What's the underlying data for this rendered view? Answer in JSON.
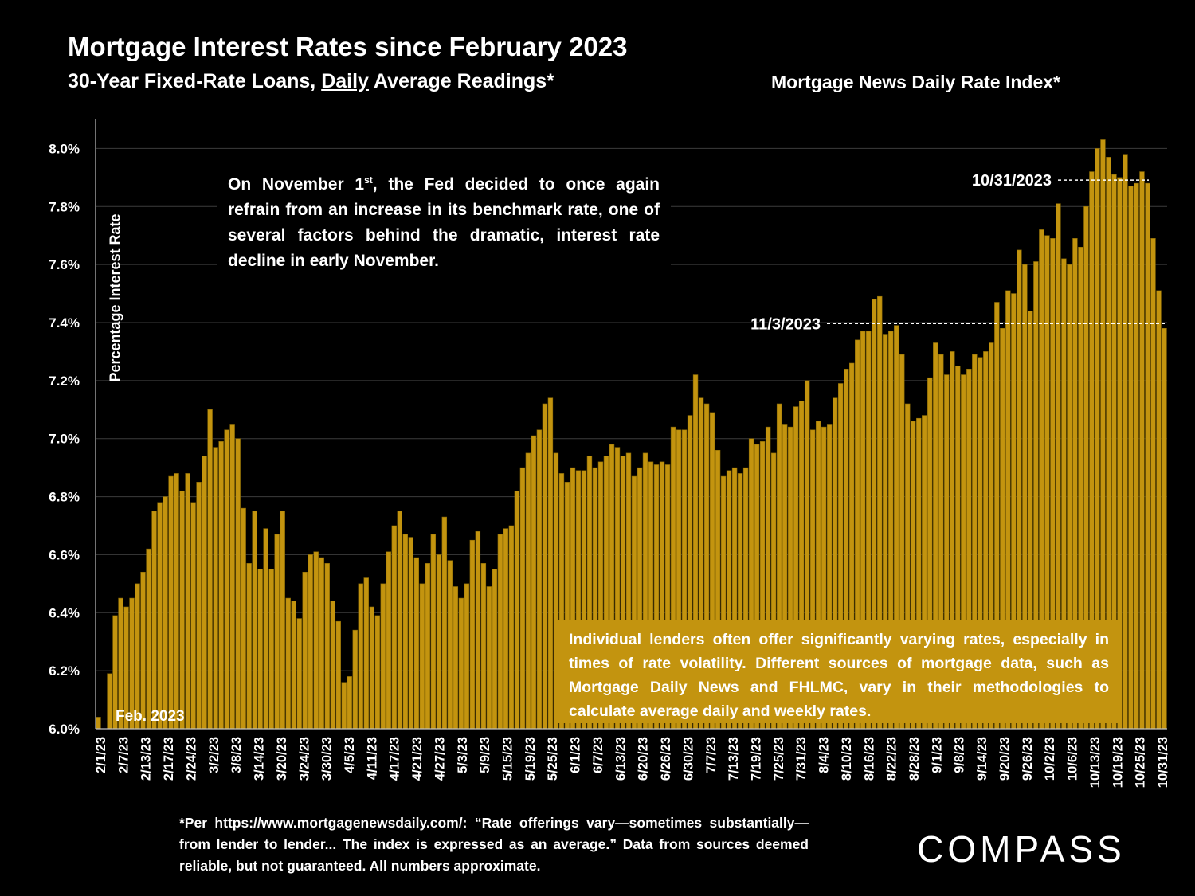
{
  "title": "Mortgage Interest Rates since February 2023",
  "subtitle_prefix": "30-Year Fixed-Rate Loans, ",
  "subtitle_emphasis": "Daily",
  "subtitle_suffix": " Average Readings*",
  "index_label": "Mortgage News Daily Rate Index*",
  "fed_note": {
    "part1": "On November 1",
    "sup": "st",
    "part2": ", the Fed decided to once again refrain from an increase in its benchmark rate, one of several factors behind the dramatic, interest rate decline in early November."
  },
  "lender_note": "Individual lenders often offer significantly varying rates, especially in times of rate volatility. Different sources of mortgage data, such as Mortgage Daily News and FHLMC, vary in their methodologies to calculate average daily and weekly rates.",
  "footnote": "*Per https://www.mortgagenewsdaily.com/: “Rate offerings vary—sometimes substantially—from lender to lender... The index is expressed as an average.” Data from sources deemed reliable, but not guaranteed. All numbers approximate.",
  "logo_text": "COMPASS",
  "colors": {
    "bar": "#c3940f",
    "bar_edge": "#8a6a05",
    "background": "#000000",
    "text": "#ffffff"
  },
  "chart_data": {
    "type": "bar",
    "ylabel": "Percentage Interest  Rate",
    "ylim": [
      6.0,
      8.1
    ],
    "yticks": [
      6.0,
      6.2,
      6.4,
      6.6,
      6.8,
      7.0,
      7.2,
      7.4,
      7.6,
      7.8,
      8.0
    ],
    "ytick_labels": [
      "6.0%",
      "6.2%",
      "6.4%",
      "6.6%",
      "6.8%",
      "7.0%",
      "7.2%",
      "7.4%",
      "7.6%",
      "7.8%",
      "8.0%"
    ],
    "grid": true,
    "values": [
      6.04,
      6.0,
      6.19,
      6.39,
      6.45,
      6.42,
      6.45,
      6.5,
      6.54,
      6.62,
      6.75,
      6.78,
      6.8,
      6.87,
      6.88,
      6.82,
      6.88,
      6.78,
      6.85,
      6.94,
      7.1,
      6.97,
      6.99,
      7.03,
      7.05,
      7.0,
      6.76,
      6.57,
      6.75,
      6.55,
      6.69,
      6.55,
      6.67,
      6.75,
      6.45,
      6.44,
      6.38,
      6.54,
      6.6,
      6.61,
      6.59,
      6.57,
      6.44,
      6.37,
      6.16,
      6.18,
      6.34,
      6.5,
      6.52,
      6.42,
      6.39,
      6.5,
      6.61,
      6.7,
      6.75,
      6.67,
      6.66,
      6.59,
      6.5,
      6.57,
      6.67,
      6.6,
      6.73,
      6.58,
      6.49,
      6.45,
      6.5,
      6.65,
      6.68,
      6.57,
      6.49,
      6.55,
      6.67,
      6.69,
      6.7,
      6.82,
      6.9,
      6.95,
      7.01,
      7.03,
      7.12,
      7.14,
      6.95,
      6.88,
      6.85,
      6.9,
      6.89,
      6.89,
      6.94,
      6.9,
      6.92,
      6.94,
      6.98,
      6.97,
      6.94,
      6.95,
      6.87,
      6.9,
      6.95,
      6.92,
      6.91,
      6.92,
      6.91,
      7.04,
      7.03,
      7.03,
      7.08,
      7.22,
      7.14,
      7.12,
      7.09,
      6.96,
      6.87,
      6.89,
      6.9,
      6.88,
      6.9,
      7.0,
      6.98,
      6.99,
      7.04,
      6.95,
      7.12,
      7.05,
      7.04,
      7.11,
      7.13,
      7.2,
      7.03,
      7.06,
      7.04,
      7.05,
      7.14,
      7.19,
      7.24,
      7.26,
      7.34,
      7.37,
      7.37,
      7.48,
      7.49,
      7.36,
      7.37,
      7.39,
      7.29,
      7.12,
      7.06,
      7.07,
      7.08,
      7.21,
      7.33,
      7.29,
      7.22,
      7.3,
      7.25,
      7.22,
      7.24,
      7.29,
      7.28,
      7.3,
      7.33,
      7.47,
      7.38,
      7.51,
      7.5,
      7.65,
      7.6,
      7.44,
      7.61,
      7.72,
      7.7,
      7.69,
      7.81,
      7.62,
      7.6,
      7.69,
      7.66,
      7.8,
      7.92,
      8.0,
      8.03,
      7.97,
      7.91,
      7.9,
      7.98,
      7.87,
      7.88,
      7.92,
      7.88,
      7.69,
      7.51,
      7.38
    ],
    "x_tick_labels": [
      "2/1/23",
      "2/7/23",
      "2/13/23",
      "2/17/23",
      "2/24/23",
      "3/2/23",
      "3/8/23",
      "3/14/23",
      "3/20/23",
      "3/24/23",
      "3/30/23",
      "4/5/23",
      "4/11/23",
      "4/17/23",
      "4/21/23",
      "4/27/23",
      "5/3/23",
      "5/9/23",
      "5/15/23",
      "5/19/23",
      "5/25/23",
      "6/1/23",
      "6/7/23",
      "6/13/23",
      "6/20/23",
      "6/26/23",
      "6/30/23",
      "7/7/23",
      "7/13/23",
      "7/19/23",
      "7/25/23",
      "7/31/23",
      "8/4/23",
      "8/10/23",
      "8/16/23",
      "8/22/23",
      "8/28/23",
      "9/1/23",
      "9/8/23",
      "9/14/23",
      "9/20/23",
      "9/26/23",
      "10/2/23",
      "10/6/23",
      "10/13/23",
      "10/19/23",
      "10/25/23",
      "10/31/23"
    ],
    "annotations": [
      {
        "text": "Feb. 2023"
      },
      {
        "text": "10/31/2023",
        "value": 7.88
      },
      {
        "text": "11/3/2023",
        "value": 7.38
      }
    ]
  }
}
